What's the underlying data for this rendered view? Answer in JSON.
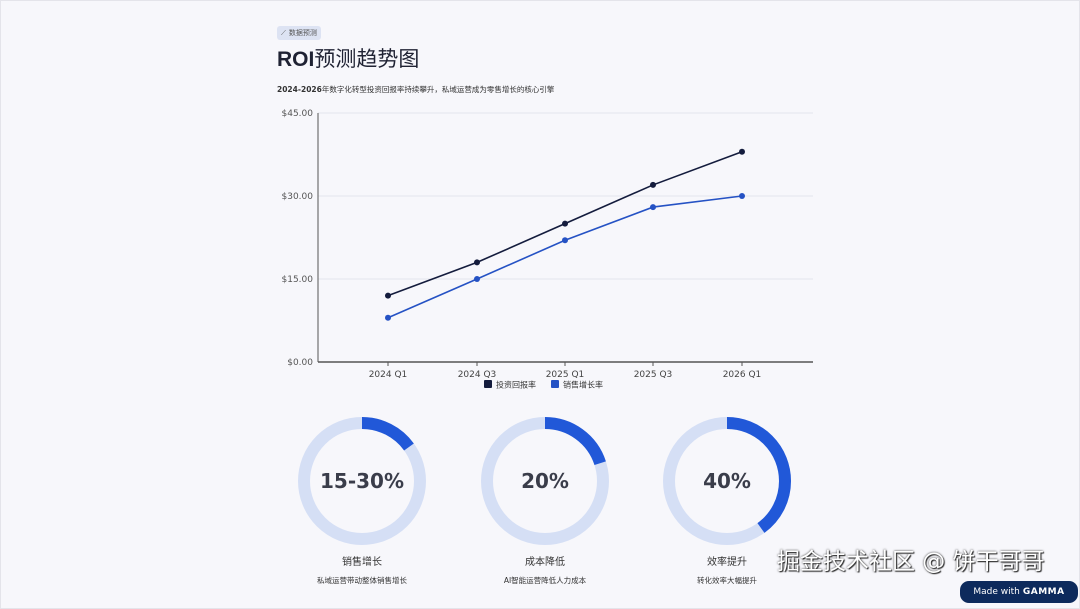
{
  "badge": {
    "icon": "chart-line-icon",
    "label": "数据预测"
  },
  "title": {
    "bold": "ROI",
    "rest": "预测趋势图"
  },
  "subtitle": {
    "bold": "2024-2026",
    "rest": "年数字化转型投资回报率持续攀升，私域运营成为零售增长的核心引擎"
  },
  "chart_data": {
    "type": "line",
    "categories": [
      "2024 Q1",
      "2024 Q3",
      "2025 Q1",
      "2025 Q3",
      "2026 Q1"
    ],
    "y_ticks": [
      "$0.00",
      "$15.00",
      "$30.00",
      "$45.00"
    ],
    "ylim": [
      0,
      45
    ],
    "grid": true,
    "legend_placement": "bottom",
    "series": [
      {
        "name": "投资回报率",
        "color": "#141c3d",
        "values": [
          12,
          18,
          25,
          32,
          38
        ]
      },
      {
        "name": "销售增长率",
        "color": "#2552c4",
        "values": [
          8,
          15,
          22,
          28,
          30
        ]
      }
    ]
  },
  "metrics": [
    {
      "value": "15-30%",
      "fill_percent": 15,
      "label": "销售增长",
      "desc": "私域运营带动整体销售增长"
    },
    {
      "value": "20%",
      "fill_percent": 20,
      "label": "成本降低",
      "desc": "AI智能运营降低人力成本"
    },
    {
      "value": "40%",
      "fill_percent": 40,
      "label": "效率提升",
      "desc": "转化效率大幅提升"
    }
  ],
  "colors": {
    "accent": "#2158d8",
    "track": "#d5dff5"
  },
  "watermark": "掘金技术社区 @ 饼干哥哥",
  "gamma": {
    "prefix": "Made with",
    "brand": "GAMMA"
  }
}
